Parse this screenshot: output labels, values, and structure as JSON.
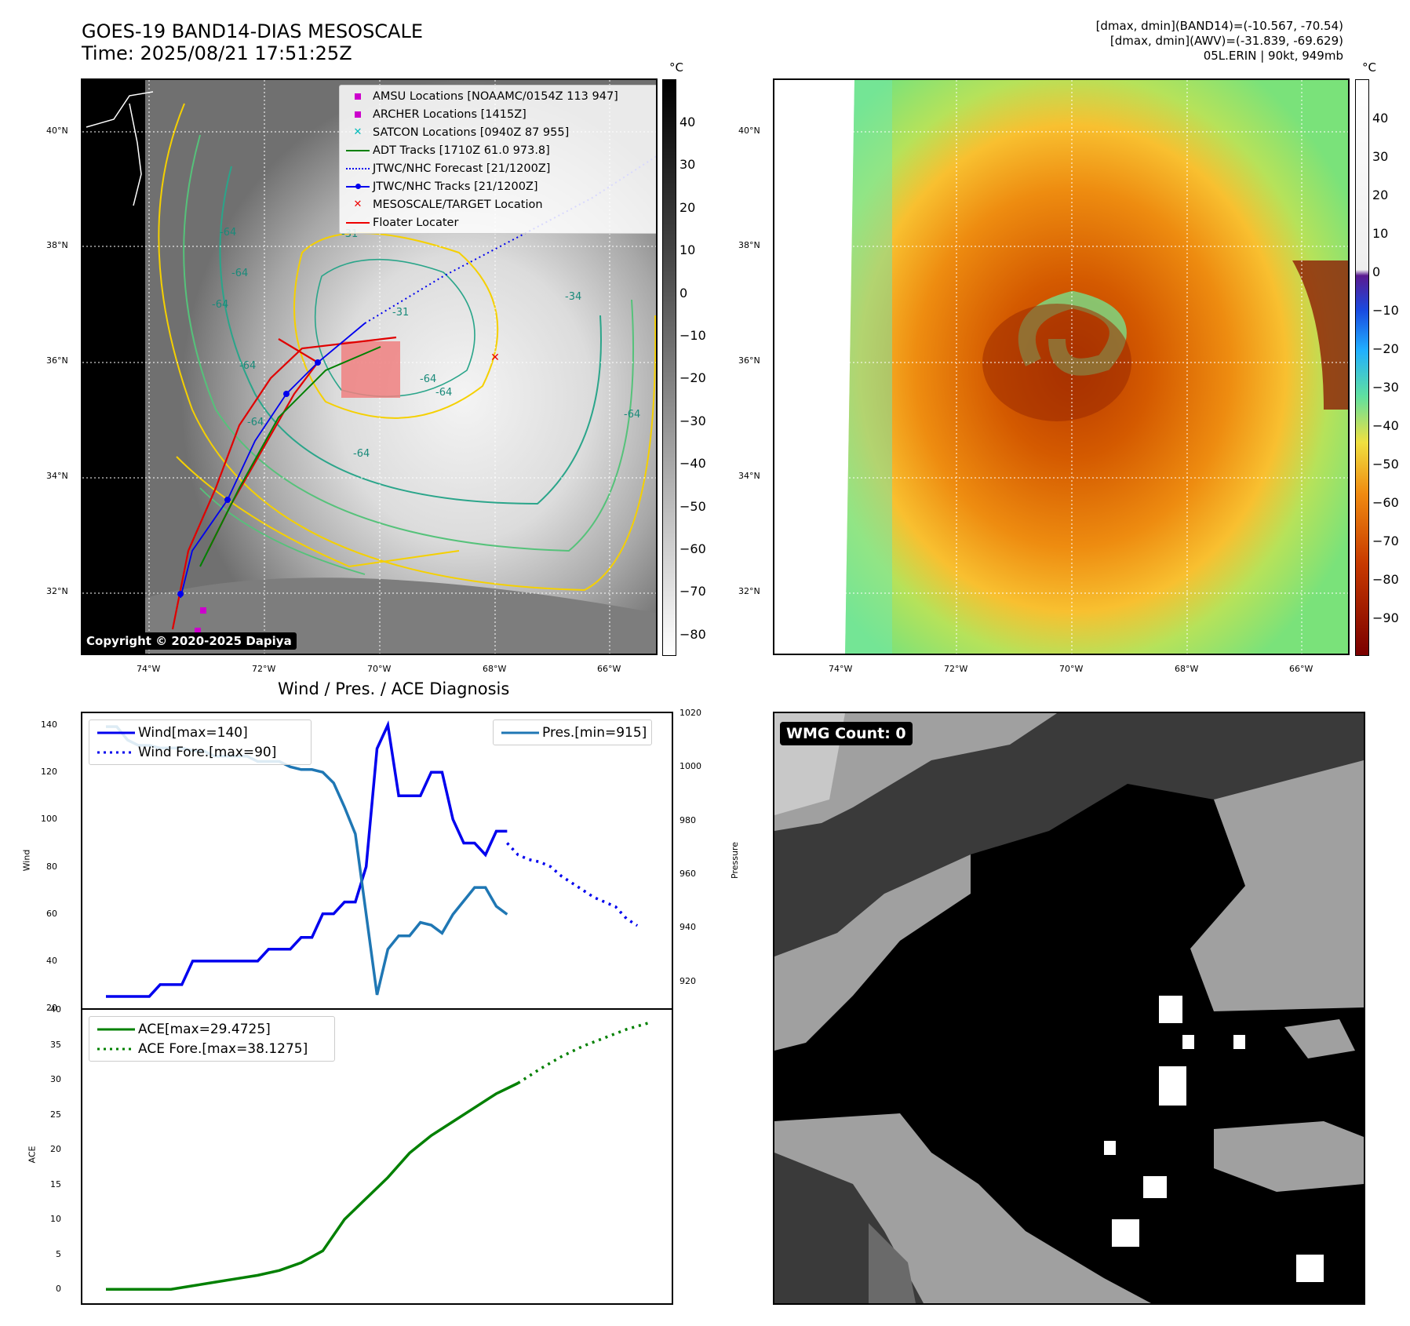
{
  "header": {
    "title_line1": "GOES-19 BAND14-DIAS MESOSCALE",
    "title_line2": "Time: 2025/08/21 17:51:25Z",
    "info_line1": "[dmax, dmin](BAND14)=(-10.567, -70.54)",
    "info_line2": "[dmax, dmin](AWV)=(-31.839, -69.629)",
    "info_line3": "05L.ERIN | 90kt, 949mb"
  },
  "map_left": {
    "lat_labels": [
      "40°N",
      "38°N",
      "36°N",
      "34°N",
      "32°N"
    ],
    "lon_labels": [
      "74°W",
      "72°W",
      "70°W",
      "68°W",
      "66°W"
    ],
    "contour_labels": [
      "-64",
      "-64",
      "-64",
      "-64",
      "-64",
      "-64",
      "-31",
      "-34",
      "-31",
      "-64",
      "-64",
      "-64"
    ],
    "copyright": "Copyright © 2020-2025 Dapiya",
    "colorbar_unit": "°C",
    "colorbar_ticks": [
      "40",
      "30",
      "20",
      "10",
      "0",
      "−10",
      "−20",
      "−30",
      "−40",
      "−50",
      "−60",
      "−70",
      "−80"
    ],
    "legend": [
      {
        "label": "AMSU Locations [NOAAMC/0154Z 113 947]",
        "marker": "square",
        "color": "#cc00cc"
      },
      {
        "label": "ARCHER Locations [1415Z]",
        "marker": "square",
        "color": "#cc00cc"
      },
      {
        "label": "SATCON Locations [0940Z 87 955]",
        "marker": "x",
        "color": "#00bbbb"
      },
      {
        "label": "ADT Tracks [1710Z 61.0 973.8]",
        "marker": "line",
        "color": "#008000"
      },
      {
        "label": "JTWC/NHC Forecast [21/1200Z]",
        "marker": "dotted",
        "color": "#0000ee"
      },
      {
        "label": "JTWC/NHC Tracks [21/1200Z]",
        "marker": "linedot",
        "color": "#0000ee"
      },
      {
        "label": "MESOSCALE/TARGET Location",
        "marker": "x",
        "color": "#ee0000"
      },
      {
        "label": "Floater Locater",
        "marker": "line",
        "color": "#ee0000"
      }
    ]
  },
  "map_right": {
    "lat_labels": [
      "40°N",
      "38°N",
      "36°N",
      "34°N",
      "32°N"
    ],
    "lon_labels": [
      "74°W",
      "72°W",
      "70°W",
      "68°W",
      "66°W"
    ],
    "colorbar_unit": "°C",
    "colorbar_ticks": [
      "40",
      "30",
      "20",
      "10",
      "0",
      "−10",
      "−20",
      "−30",
      "−40",
      "−50",
      "−60",
      "−70",
      "−80",
      "−90"
    ]
  },
  "diagnosis": {
    "title": "Wind / Pres. / ACE Diagnosis",
    "wind_ylabel": "Wind",
    "pres_ylabel": "Pressure",
    "ace_ylabel": "ACE",
    "wind_ticks": [
      "140",
      "120",
      "100",
      "80",
      "60",
      "40",
      "20"
    ],
    "pres_ticks": [
      "1020",
      "1000",
      "980",
      "960",
      "940",
      "920"
    ],
    "ace_ticks": [
      "40",
      "35",
      "30",
      "25",
      "20",
      "15",
      "10",
      "5",
      "0"
    ],
    "legend_wind": "Wind[max=140]",
    "legend_wind_fore": "Wind Fore.[max=90]",
    "legend_pres": "Pres.[min=915]",
    "legend_ace": "ACE[max=29.4725]",
    "legend_ace_fore": "ACE Fore.[max=38.1275]"
  },
  "wmg": {
    "label": "WMG Count: 0"
  },
  "chart_data": [
    {
      "type": "line",
      "title": "Wind / Pres. / ACE Diagnosis",
      "ylabel": "Wind",
      "ylim": [
        20,
        145
      ],
      "x": [
        0,
        1,
        2,
        3,
        4,
        5,
        6,
        7,
        8,
        9,
        10,
        11,
        12,
        13,
        14,
        15,
        16,
        17,
        18,
        19,
        20,
        21,
        22,
        23,
        24,
        25,
        26,
        27,
        28,
        29,
        30,
        31,
        32,
        33,
        34,
        35,
        36,
        37,
        38,
        39,
        40,
        41,
        42,
        43,
        44,
        45,
        46,
        47,
        48,
        49
      ],
      "series": [
        {
          "name": "Wind[max=140]",
          "color": "#0000ee",
          "x": [
            0,
            1,
            2,
            3,
            4,
            5,
            6,
            7,
            8,
            9,
            10,
            11,
            12,
            13,
            14,
            15,
            16,
            17,
            18,
            19,
            20,
            21,
            22,
            23,
            24,
            25,
            26,
            27,
            28,
            29,
            30,
            31,
            32,
            33,
            34,
            35,
            36,
            37
          ],
          "values": [
            25,
            25,
            25,
            25,
            25,
            30,
            30,
            30,
            40,
            40,
            40,
            40,
            40,
            40,
            40,
            45,
            45,
            45,
            50,
            50,
            60,
            60,
            65,
            65,
            80,
            130,
            140,
            110,
            110,
            110,
            120,
            120,
            100,
            90,
            90,
            85,
            95,
            95
          ]
        },
        {
          "name": "Wind Fore.[max=90]",
          "color": "#0000ee",
          "style": "dotted",
          "x": [
            37,
            38,
            39,
            40,
            41,
            42,
            43,
            44,
            45,
            46,
            47,
            48,
            49
          ],
          "values": [
            90,
            85,
            83,
            82,
            80,
            76,
            73,
            70,
            67,
            65,
            63,
            58,
            55
          ]
        }
      ]
    },
    {
      "type": "line",
      "ylabel": "Pressure",
      "ylim": [
        910,
        1020
      ],
      "series": [
        {
          "name": "Pres.[min=915]",
          "color": "#1f77b4",
          "x": [
            0,
            1,
            2,
            3,
            4,
            5,
            6,
            7,
            8,
            9,
            10,
            11,
            12,
            13,
            14,
            15,
            16,
            17,
            18,
            19,
            20,
            21,
            22,
            23,
            24,
            25,
            26,
            27,
            28,
            29,
            30,
            31,
            32,
            33,
            34,
            35,
            36,
            37
          ],
          "values": [
            1015,
            1015,
            1010,
            1008,
            1008,
            1007,
            1007,
            1007,
            1006,
            1006,
            1004,
            1004,
            1004,
            1004,
            1002,
            1002,
            1002,
            1000,
            999,
            999,
            998,
            994,
            985,
            975,
            945,
            915,
            932,
            937,
            937,
            942,
            941,
            938,
            945,
            950,
            955,
            955,
            948,
            945
          ]
        }
      ]
    },
    {
      "type": "line",
      "ylabel": "ACE",
      "ylim": [
        -2,
        40
      ],
      "series": [
        {
          "name": "ACE[max=29.4725]",
          "color": "#008000",
          "x": [
            0,
            2,
            4,
            6,
            8,
            10,
            12,
            14,
            16,
            18,
            20,
            22,
            24,
            26,
            28,
            30,
            32,
            34,
            36,
            38
          ],
          "values": [
            0,
            0,
            0,
            0,
            0.5,
            1,
            1.5,
            2,
            2.7,
            3.8,
            5.5,
            10,
            13,
            16,
            19.5,
            22,
            24,
            26,
            28,
            29.5
          ]
        },
        {
          "name": "ACE Fore.[max=38.1275]",
          "color": "#008000",
          "style": "dotted",
          "x": [
            38,
            40,
            42,
            44,
            46,
            48,
            50
          ],
          "values": [
            29.5,
            31.5,
            33.3,
            34.8,
            36,
            37.2,
            38.1
          ]
        }
      ]
    }
  ]
}
